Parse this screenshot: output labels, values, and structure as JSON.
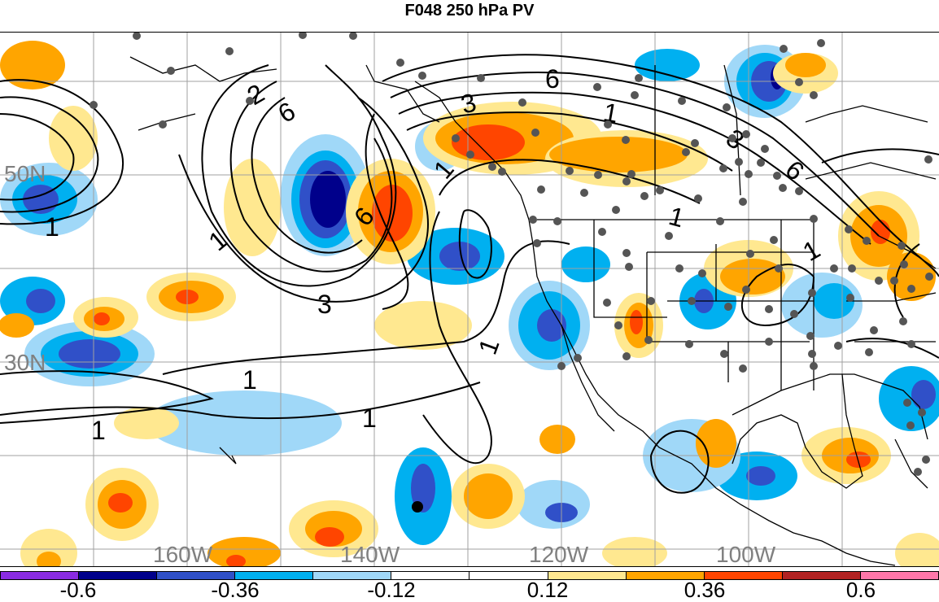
{
  "title": "F048 250 hPa PV",
  "lat_labels": [
    "50N",
    "30N"
  ],
  "lon_labels": [
    "160W",
    "140W",
    "120W",
    "100W"
  ],
  "contour_labels": [
    "1",
    "2",
    "3",
    "6"
  ],
  "colorbar": {
    "colors": [
      "#8a2be2",
      "#00008b",
      "#3050c8",
      "#00b0f0",
      "#a0d8f8",
      "#ffffff",
      "#ffffff",
      "#ffe890",
      "#ffa500",
      "#ff4500",
      "#b22222",
      "#ff77aa"
    ],
    "labels": [
      "-0.6",
      "-0.36",
      "-0.12",
      "0.12",
      "0.36",
      "0.6"
    ]
  },
  "colors": {
    "negative_deep": "#00008b",
    "negative_mid": "#3050c8",
    "negative": "#00b0f0",
    "negative_light": "#a0d8f8",
    "positive_light": "#ffe890",
    "positive": "#ffa500",
    "positive_mid": "#ff4500",
    "positive_deep": "#b22222",
    "grid": "#a0a0a0",
    "station": "#555555"
  }
}
